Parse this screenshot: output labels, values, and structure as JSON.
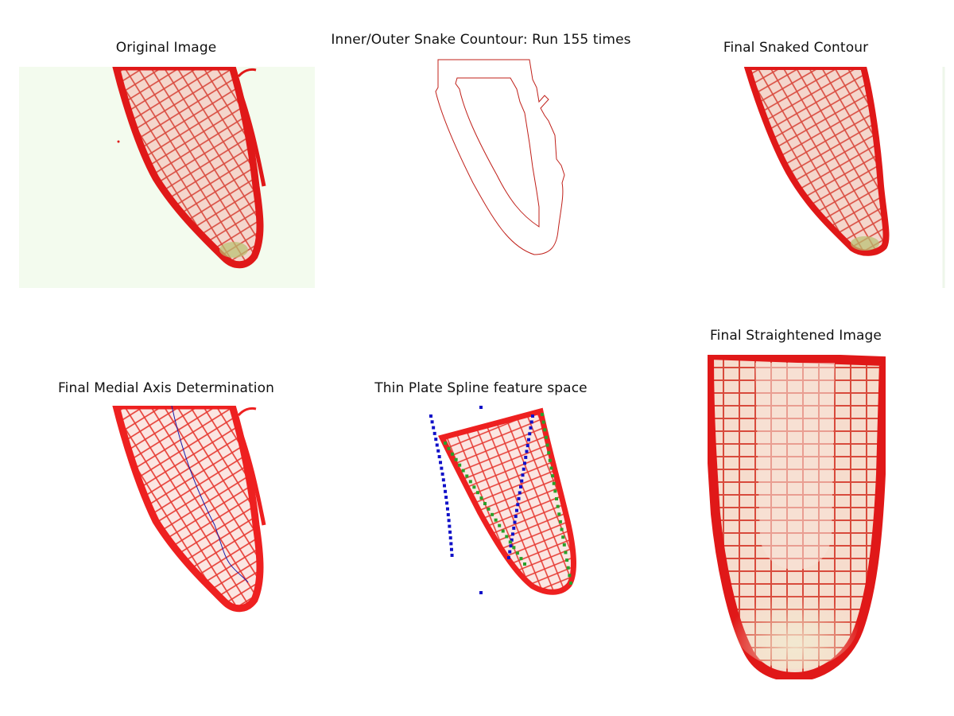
{
  "figure": {
    "panels": [
      {
        "id": "original",
        "title": "Original Image"
      },
      {
        "id": "snake",
        "title": "Inner/Outer Snake Countour: Run 155 times"
      },
      {
        "id": "final-contour",
        "title": "Final Snaked Contour"
      },
      {
        "id": "medial-axis",
        "title": "Final Medial Axis Determination"
      },
      {
        "id": "tps",
        "title": "Thin Plate Spline feature space"
      },
      {
        "id": "straightened",
        "title": "Final Straightened Image"
      }
    ]
  },
  "colors": {
    "tissue_red": "#e01818",
    "tissue_light": "#f6d8cf",
    "background_green": "#f3fbee",
    "snake_line": "#c0201a",
    "medial_axis": "#1a1aa8",
    "feature_points_blue": "#1010c8",
    "feature_points_green": "#2aa02a"
  }
}
